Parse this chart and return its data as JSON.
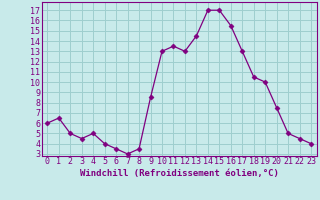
{
  "x": [
    0,
    1,
    2,
    3,
    4,
    5,
    6,
    7,
    8,
    9,
    10,
    11,
    12,
    13,
    14,
    15,
    16,
    17,
    18,
    19,
    20,
    21,
    22,
    23
  ],
  "y": [
    6,
    6.5,
    5,
    4.5,
    5,
    4,
    3.5,
    3,
    3.5,
    8.5,
    13,
    13.5,
    13,
    14.5,
    17,
    17,
    15.5,
    13,
    10.5,
    10,
    7.5,
    5,
    4.5,
    4
  ],
  "line_color": "#800080",
  "marker": "D",
  "marker_size": 2.5,
  "bg_color": "#c8eaea",
  "grid_color": "#9ecece",
  "xlabel": "Windchill (Refroidissement éolien,°C)",
  "xlabel_fontsize": 6.5,
  "tick_fontsize": 6,
  "ylim": [
    2.8,
    17.8
  ],
  "xlim": [
    -0.5,
    23.5
  ],
  "yticks": [
    3,
    4,
    5,
    6,
    7,
    8,
    9,
    10,
    11,
    12,
    13,
    14,
    15,
    16,
    17
  ],
  "xticks": [
    0,
    1,
    2,
    3,
    4,
    5,
    6,
    7,
    8,
    9,
    10,
    11,
    12,
    13,
    14,
    15,
    16,
    17,
    18,
    19,
    20,
    21,
    22,
    23
  ]
}
